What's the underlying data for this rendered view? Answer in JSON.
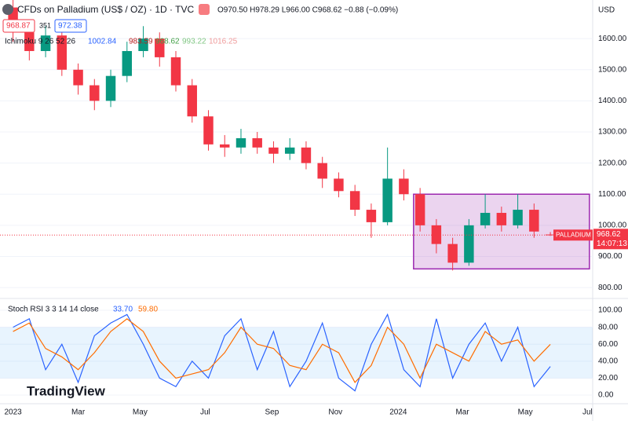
{
  "header": {
    "title": "CFDs on Palladium (US$ / OZ) · 1D · TVC",
    "ohlc": "O970.50 H978.29 L966.00 C968.62 −0.88 (−0.09%)",
    "bid": "968.87",
    "spread": "351",
    "ask": "972.38",
    "ichimoku": "Ichimoku 9 26 52 26",
    "ichimoku_values": [
      "1002.84",
      "983.59",
      "968.62",
      "993.22",
      "1016.25"
    ],
    "currency": "USD",
    "brand": "TradingView"
  },
  "chart_data": [
    {
      "type": "candlestick",
      "symbol_label": "PALLADIUM",
      "last_price_label": "968.62",
      "countdown": "14:07:13",
      "x": [
        0,
        0.5,
        1,
        1.5,
        2,
        2.5,
        3,
        3.5,
        4,
        4.5,
        5,
        5.5,
        6,
        6.5,
        7,
        7.5,
        8,
        8.5,
        9,
        9.5,
        10,
        10.5,
        11,
        11.5,
        12,
        12.5,
        13,
        13.5,
        14,
        14.5,
        15,
        15.5,
        16,
        16.5
      ],
      "open": [
        1700,
        1620,
        1560,
        1610,
        1500,
        1450,
        1400,
        1480,
        1560,
        1600,
        1540,
        1450,
        1350,
        1260,
        1250,
        1280,
        1250,
        1230,
        1250,
        1200,
        1150,
        1110,
        1050,
        1010,
        1150,
        1100,
        1000,
        940,
        880,
        1000,
        1040,
        1000,
        1050,
        970.5
      ],
      "high": [
        1730,
        1650,
        1640,
        1630,
        1520,
        1470,
        1500,
        1590,
        1640,
        1620,
        1560,
        1470,
        1370,
        1290,
        1310,
        1300,
        1270,
        1280,
        1270,
        1220,
        1170,
        1130,
        1070,
        1250,
        1180,
        1120,
        1020,
        960,
        1020,
        1100,
        1060,
        1100,
        1070,
        978.29
      ],
      "low": [
        1590,
        1530,
        1540,
        1480,
        1420,
        1370,
        1380,
        1460,
        1540,
        1510,
        1430,
        1330,
        1240,
        1220,
        1230,
        1230,
        1200,
        1210,
        1180,
        1120,
        1090,
        1030,
        960,
        1000,
        1080,
        980,
        910,
        855,
        870,
        990,
        980,
        990,
        960,
        966
      ],
      "close": [
        1620,
        1560,
        1610,
        1500,
        1450,
        1400,
        1480,
        1560,
        1600,
        1540,
        1450,
        1350,
        1260,
        1250,
        1280,
        1250,
        1230,
        1250,
        1200,
        1150,
        1110,
        1050,
        1010,
        1150,
        1100,
        1000,
        940,
        880,
        1000,
        1040,
        1000,
        1050,
        980,
        968.62
      ],
      "up_color": "#089981",
      "down_color": "#f23645",
      "range_box": {
        "x": [
          12.3,
          17.7
        ],
        "y": [
          860,
          1100
        ],
        "color": "#9c27b0"
      },
      "xlim": [
        -0.4,
        17.8
      ],
      "ylim": [
        770,
        1724
      ],
      "yticks": [
        {
          "value": 800,
          "label": "800.00"
        },
        {
          "value": 900,
          "label": "900.00"
        },
        {
          "value": 1000,
          "label": "1000.00"
        },
        {
          "value": 1100,
          "label": "1100.00"
        },
        {
          "value": 1200,
          "label": "1200.00"
        },
        {
          "value": 1300,
          "label": "1300.00"
        },
        {
          "value": 1400,
          "label": "1400.00"
        },
        {
          "value": 1500,
          "label": "1500.00"
        },
        {
          "value": 1600,
          "label": "1600.00"
        }
      ]
    },
    {
      "type": "line",
      "title": "Stoch RSI 3 3 14 14 close",
      "value_labels": [
        "33.70",
        "59.80"
      ],
      "x": [
        0,
        0.5,
        1,
        1.5,
        2,
        2.5,
        3,
        3.5,
        4,
        4.5,
        5,
        5.5,
        6,
        6.5,
        7,
        7.5,
        8,
        8.5,
        9,
        9.5,
        10,
        10.5,
        11,
        11.5,
        12,
        12.5,
        13,
        13.5,
        14,
        14.5,
        15,
        15.5,
        16,
        16.5
      ],
      "series": [
        {
          "name": "K",
          "color": "#2962ff",
          "values": [
            80,
            90,
            30,
            60,
            15,
            70,
            85,
            95,
            60,
            20,
            10,
            40,
            20,
            70,
            90,
            30,
            75,
            10,
            40,
            85,
            20,
            5,
            60,
            95,
            30,
            10,
            90,
            20,
            60,
            85,
            40,
            80,
            10,
            33.7
          ]
        },
        {
          "name": "D",
          "color": "#ff6d00",
          "values": [
            75,
            85,
            55,
            45,
            30,
            50,
            75,
            90,
            75,
            40,
            20,
            25,
            30,
            50,
            80,
            60,
            55,
            35,
            30,
            60,
            50,
            15,
            35,
            80,
            60,
            20,
            60,
            50,
            40,
            75,
            60,
            65,
            40,
            59.8
          ]
        }
      ],
      "band": [
        20,
        80
      ],
      "xlim": [
        -0.4,
        17.8
      ],
      "ylim": [
        -8.3,
        109.3
      ],
      "yticks": [
        {
          "value": 0,
          "label": "0.00"
        },
        {
          "value": 20,
          "label": "20.00"
        },
        {
          "value": 40,
          "label": "40.00"
        },
        {
          "value": 60,
          "label": "60.00"
        },
        {
          "value": 80,
          "label": "80.00"
        },
        {
          "value": 100,
          "label": "100.00"
        }
      ],
      "xticks": [
        {
          "value": 0,
          "label": "2023"
        },
        {
          "value": 2,
          "label": "Mar"
        },
        {
          "value": 3.9,
          "label": "May"
        },
        {
          "value": 5.9,
          "label": "Jul"
        },
        {
          "value": 7.95,
          "label": "Sep"
        },
        {
          "value": 9.9,
          "label": "Nov"
        },
        {
          "value": 11.83,
          "label": "2024"
        },
        {
          "value": 13.8,
          "label": "Mar"
        },
        {
          "value": 15.73,
          "label": "May"
        },
        {
          "value": 17.64,
          "label": "Jul"
        }
      ]
    }
  ]
}
